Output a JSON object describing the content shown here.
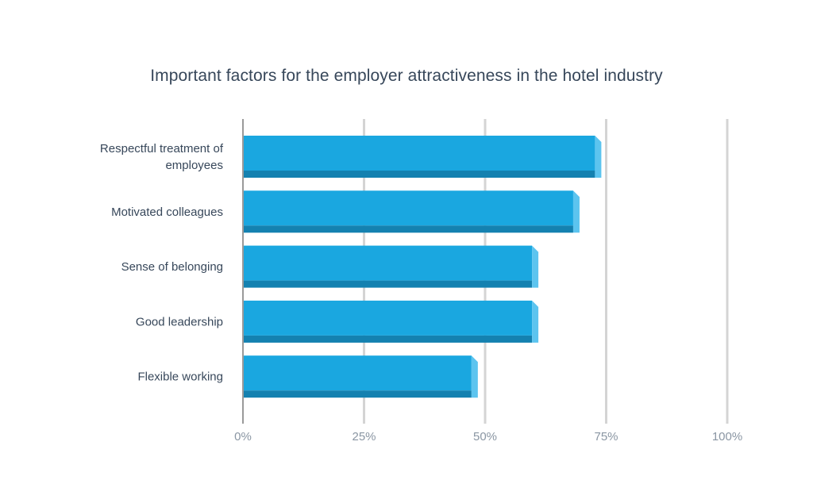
{
  "chart_data": {
    "type": "bar",
    "orientation": "horizontal",
    "title": "Important factors for the employer attractiveness in the hotel industry",
    "categories": [
      [
        "Respectful treatment of",
        "employees"
      ],
      [
        "Motivated colleagues"
      ],
      [
        "Sense of belonging"
      ],
      [
        "Good leadership"
      ],
      [
        "Flexible working"
      ]
    ],
    "values": [
      74,
      69.5,
      61,
      61,
      48.5
    ],
    "xlim": [
      0,
      100
    ],
    "xticks": [
      "0%",
      "25%",
      "50%",
      "75%",
      "100%"
    ],
    "xtick_values": [
      0,
      25,
      50,
      75,
      100
    ],
    "grid": true,
    "colors": {
      "bar_face": "#1aa7e0",
      "bar_bottom": "#1481b0",
      "bar_side": "#5cc4ef",
      "grid": "#d4d4d4",
      "axis": "#9a9a9a"
    }
  }
}
